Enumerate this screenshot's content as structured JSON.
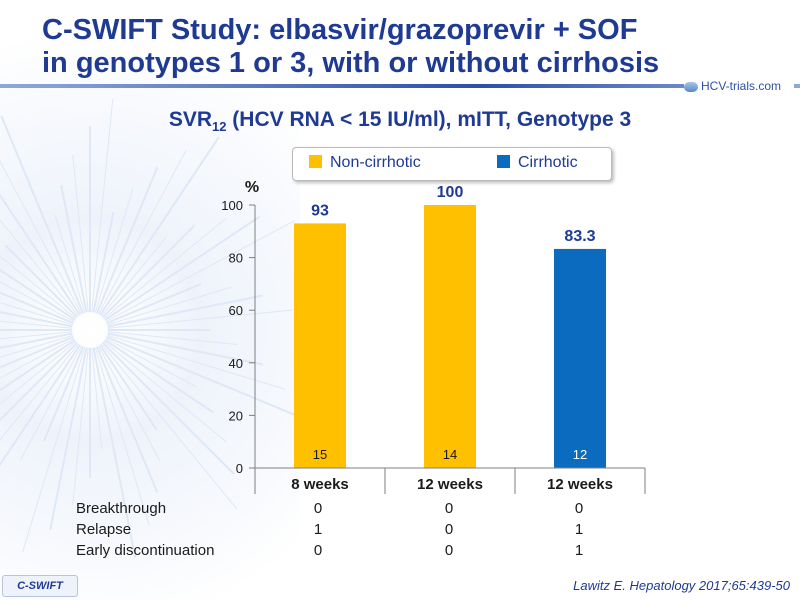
{
  "slide": {
    "title_line1": "C-SWIFT Study: elbasvir/grazoprevir + SOF",
    "title_line2": "in genotypes 1 or 3, with or without cirrhosis",
    "logo_text": "HCV-trials.com",
    "subtitle_prefix": "SVR",
    "subtitle_sub": "12",
    "subtitle_rest": " (HCV RNA < 15 IU/ml), mITT, Genotype 3",
    "badge": "C-SWIFT",
    "citation": "Lawitz  E. Hepatology 2017;65:439-50"
  },
  "colors": {
    "title": "#1f3a93",
    "non_cirrhotic": "#ffc000",
    "cirrhotic": "#0b6bbf"
  },
  "chart_data": {
    "type": "bar",
    "ylabel": "%",
    "ylim": [
      0,
      100
    ],
    "yticks": [
      0,
      20,
      40,
      60,
      80,
      100
    ],
    "categories": [
      "8 weeks",
      "12 weeks",
      "12 weeks"
    ],
    "values": [
      93,
      100,
      83.3
    ],
    "value_labels": [
      "93",
      "100",
      "83.3"
    ],
    "n_labels": [
      "15",
      "14",
      "12"
    ],
    "groups": [
      "Non-cirrhotic",
      "Non-cirrhotic",
      "Cirrhotic"
    ],
    "legend": [
      {
        "name": "Non-cirrhotic",
        "color": "#ffc000"
      },
      {
        "name": "Cirrhotic",
        "color": "#0b6bbf"
      }
    ],
    "legend_position": "top"
  },
  "table": {
    "rows": [
      {
        "label": "Breakthrough",
        "values": [
          "0",
          "0",
          "0"
        ]
      },
      {
        "label": "Relapse",
        "values": [
          "1",
          "0",
          "1"
        ]
      },
      {
        "label": "Early discontinuation",
        "values": [
          "0",
          "0",
          "1"
        ]
      }
    ]
  }
}
